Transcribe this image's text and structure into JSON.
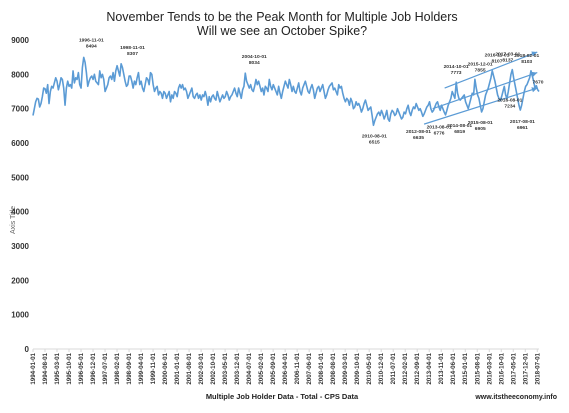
{
  "chart_data": {
    "type": "line",
    "title_line1": "November Tends to be the Peak Month for Multiple Job Holders",
    "title_line2": "Will we see an October Spike?",
    "xlabel": "Multiple Job Holder Data - Total - CPS Data",
    "ylabel": "Axis Title",
    "source": "www.itstheeconomy.info",
    "ylim": [
      0,
      9000
    ],
    "yticks": [
      0,
      1000,
      2000,
      3000,
      4000,
      5000,
      6000,
      7000,
      8000,
      9000
    ],
    "grid": false,
    "line_color": "#5b9bd5",
    "xtick_labels": [
      "1994-01-01",
      "1994-08-01",
      "1995-03-01",
      "1995-10-01",
      "1996-05-01",
      "1996-12-01",
      "1997-07-01",
      "1998-02-01",
      "1998-09-01",
      "1999-04-01",
      "1999-11-01",
      "2000-06-01",
      "2001-01-01",
      "2001-08-01",
      "2002-03-01",
      "2002-10-01",
      "2003-05-01",
      "2003-12-01",
      "2004-07-01",
      "2005-02-01",
      "2005-09-01",
      "2006-04-01",
      "2006-11-01",
      "2007-06-01",
      "2008-01-01",
      "2008-08-01",
      "2009-03-01",
      "2009-10-01",
      "2010-05-01",
      "2010-12-01",
      "2011-07-01",
      "2012-02-01",
      "2012-09-01",
      "2013-04-01",
      "2013-11-01",
      "2014-06-01",
      "2015-01-01",
      "2015-08-01",
      "2016-03-01",
      "2016-10-01",
      "2017-05-01",
      "2017-12-01",
      "2018-07-01"
    ],
    "series": [
      {
        "values": [
          6800,
          7000,
          7200,
          7300,
          7280,
          7050,
          7150,
          7350,
          7600,
          7580,
          7450,
          7700,
          7150,
          7500,
          7650,
          7600,
          7750,
          7900,
          7800,
          7550,
          7700,
          7900,
          7850,
          7600,
          7100,
          7600,
          7800,
          7650,
          7700,
          7600,
          8100,
          7750,
          7900,
          7850,
          8050,
          7700,
          7600,
          8200,
          8494,
          8350,
          8050,
          7650,
          7800,
          7900,
          7950,
          7850,
          8000,
          7800,
          7750,
          7700,
          8100,
          7900,
          8000,
          7850,
          7500,
          7600,
          7700,
          7900,
          7950,
          7850,
          8050,
          7800,
          8100,
          8250,
          8100,
          7950,
          8307,
          8200,
          8000,
          7800,
          7650,
          7700,
          7950,
          7950,
          7800,
          7600,
          7800,
          7700,
          7900,
          8050,
          7700,
          7800,
          7600,
          7500,
          7700,
          7900,
          7850,
          7700,
          8050,
          8000,
          7700,
          7500,
          7600,
          7650,
          7400,
          7500,
          7450,
          7300,
          7500,
          7450,
          7300,
          7400,
          7500,
          7200,
          7400,
          7300,
          7500,
          7450,
          7350,
          7600,
          7700,
          7600,
          7700,
          7550,
          7600,
          7500,
          7300,
          7400,
          7500,
          7600,
          7350,
          7300,
          7400,
          7450,
          7300,
          7400,
          7250,
          7400,
          7350,
          7500,
          7350,
          7100,
          7350,
          7200,
          7350,
          7400,
          7300,
          7250,
          7500,
          7350,
          7200,
          7300,
          7400,
          7300,
          7350,
          7500,
          7400,
          7250,
          7350,
          7400,
          7500,
          7600,
          7450,
          7350,
          7600,
          7450,
          7300,
          7550,
          7650,
          8034,
          7800,
          7700,
          7600,
          7700,
          7550,
          7500,
          7650,
          7850,
          7700,
          7800,
          7650,
          7500,
          7600,
          7400,
          7650,
          7600,
          7500,
          7850,
          7650,
          7550,
          7700,
          7600,
          7500,
          7400,
          7650,
          7450,
          7300,
          7500,
          7650,
          7800,
          7700,
          7600,
          7850,
          7700,
          7500,
          7650,
          7500,
          7450,
          7600,
          7750,
          7500,
          7400,
          7600,
          7700,
          7800,
          7650,
          7500,
          7450,
          7600,
          7700,
          7550,
          7300,
          7450,
          7600,
          7650,
          7500,
          7600,
          7700,
          7500,
          7300,
          7400,
          7550,
          7650,
          7700,
          7750,
          7550,
          7600,
          7500,
          7400,
          7700,
          7600,
          7650,
          7450,
          7300,
          7200,
          7300,
          7250,
          7100,
          7300,
          7200,
          7000,
          7050,
          7200,
          7100,
          7150,
          7050,
          6900,
          7000,
          7150,
          7250,
          7100,
          6950,
          7000,
          7050,
          6800,
          6515,
          6650,
          6750,
          6850,
          6900,
          6800,
          6950,
          6850,
          6700,
          6800,
          6950,
          6700,
          6635,
          6850,
          6950,
          6900,
          6800,
          6850,
          7000,
          6900,
          6800,
          6700,
          6750,
          6900,
          6850,
          7000,
          7100,
          6900,
          6800,
          6950,
          7050,
          7000,
          7150,
          7050,
          6950,
          7000,
          6900,
          6776,
          6850,
          6950,
          7050,
          7100,
          7200,
          7000,
          6900,
          6950,
          7050,
          7150,
          7200,
          7050,
          6950,
          7100,
          7000,
          6900,
          6819,
          6950,
          7100,
          7200,
          7300,
          7500,
          7400,
          7300,
          7773,
          7450,
          7300,
          7250,
          7300,
          7350,
          7400,
          7200,
          7100,
          7000,
          7150,
          7300,
          7450,
          7400,
          7855,
          7600,
          7400,
          7300,
          7100,
          6905,
          7000,
          7200,
          7400,
          7500,
          7600,
          7750,
          7900,
          8107,
          7950,
          7800,
          7600,
          7400,
          7300,
          7234,
          7350,
          7500,
          7650,
          7400,
          7300,
          7500,
          7750,
          8000,
          8137,
          7900,
          7700,
          7500,
          7300,
          7100,
          6961,
          7100,
          7300,
          7500,
          7650,
          7700,
          7800,
          7900,
          8103,
          7950,
          7800,
          7600,
          7670,
          7550,
          7500
        ]
      }
    ],
    "annotations": [
      {
        "date": "1996-11-01",
        "value": "8494"
      },
      {
        "date": "1998-11-01",
        "value": "8307"
      },
      {
        "date": "2004-10-01",
        "value": "8034"
      },
      {
        "date": "2010-08-01",
        "value": "6515"
      },
      {
        "date": "2012-08-01",
        "value": "6635"
      },
      {
        "date": "2013-08-01",
        "value": "6776"
      },
      {
        "date": "2014-08-01",
        "value": "6819"
      },
      {
        "date": "2014-10-01",
        "value": "7773"
      },
      {
        "date": "2015-08-01",
        "value": "6905"
      },
      {
        "date": "2015-12-01",
        "value": "7855"
      },
      {
        "date": "2016-11-01",
        "value": "8107"
      },
      {
        "date": "2016-08-01",
        "value": "7234"
      },
      {
        "date": "2017-03-01",
        "value": "8137"
      },
      {
        "date": "2017-08-01",
        "value": "6961"
      },
      {
        "date": "2018-02-01",
        "value": "8103"
      },
      {
        "date": "",
        "value": "7670"
      }
    ],
    "trendlines": [
      {
        "start": [
          "2014-01-01",
          7600
        ],
        "end": [
          "2018-07-01",
          8650
        ]
      },
      {
        "start": [
          "2013-06-01",
          7000
        ],
        "end": [
          "2018-07-01",
          8050
        ]
      },
      {
        "start": [
          "2013-01-01",
          6550
        ],
        "end": [
          "2018-07-01",
          7600
        ]
      }
    ]
  }
}
